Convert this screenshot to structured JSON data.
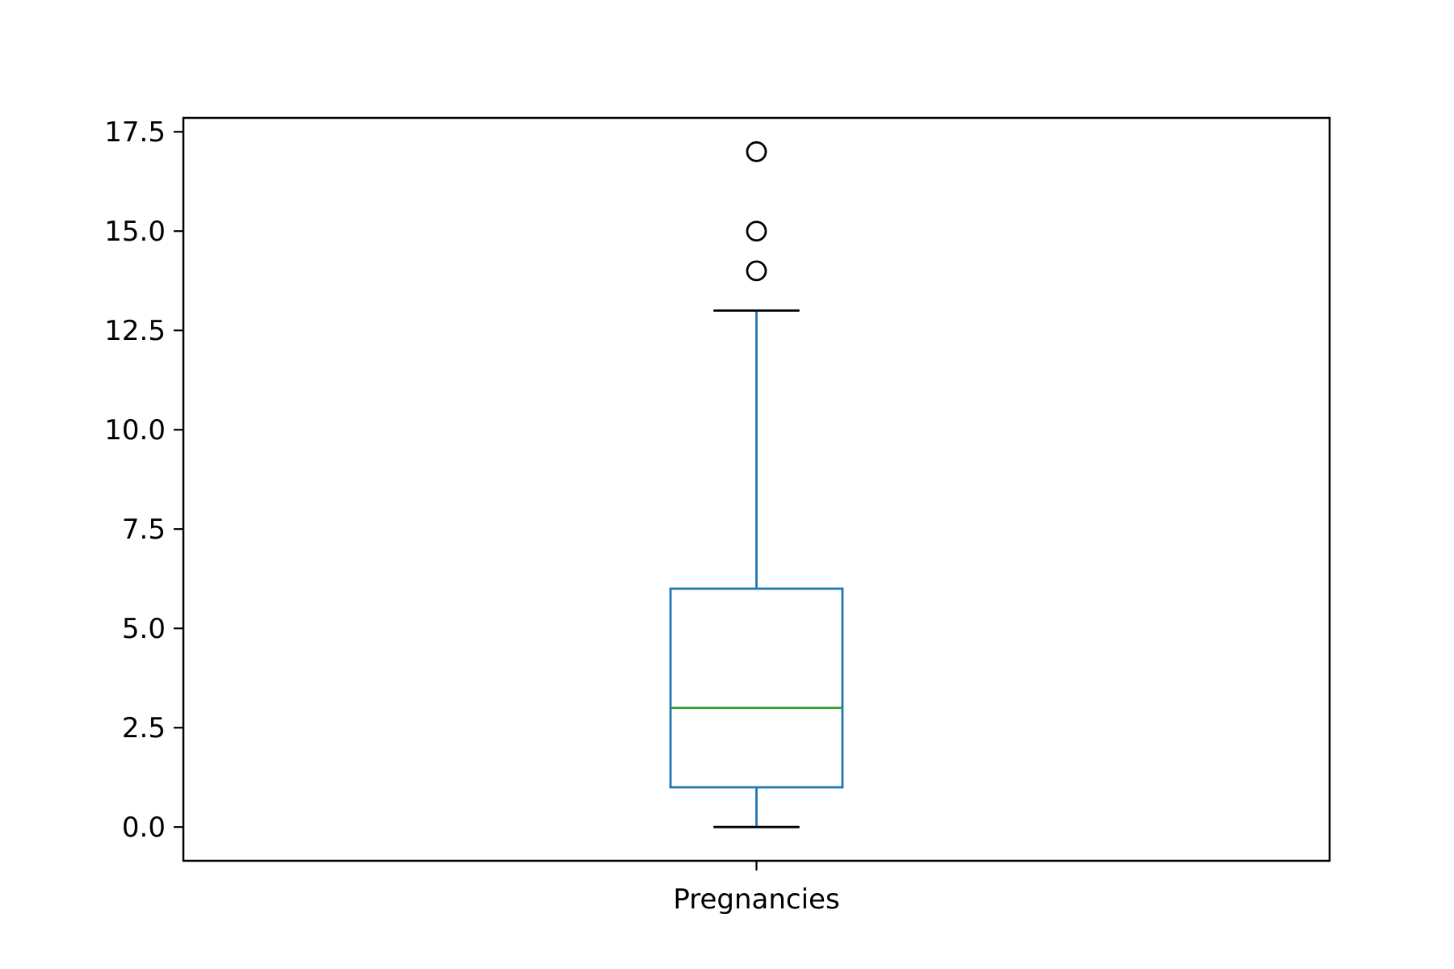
{
  "chart_data": {
    "type": "box",
    "title": "",
    "xlabel": "",
    "ylabel": "",
    "categories": [
      "Pregnancies"
    ],
    "ylim": [
      -0.85,
      17.85
    ],
    "yticks": [
      "0.0",
      "2.5",
      "5.0",
      "7.5",
      "10.0",
      "12.5",
      "15.0",
      "17.5"
    ],
    "ytick_values": [
      0.0,
      2.5,
      5.0,
      7.5,
      10.0,
      12.5,
      15.0,
      17.5
    ],
    "grid": false,
    "boxes": [
      {
        "category": "Pregnancies",
        "whisker_low": 0,
        "q1": 1,
        "median": 3,
        "q3": 6,
        "whisker_high": 13,
        "outliers": [
          14,
          15,
          17
        ]
      }
    ],
    "colors": {
      "box": "#1f77b4",
      "median": "#2ca02c",
      "caps": "#000000",
      "outliers": "#000000",
      "axes": "#000000"
    }
  }
}
